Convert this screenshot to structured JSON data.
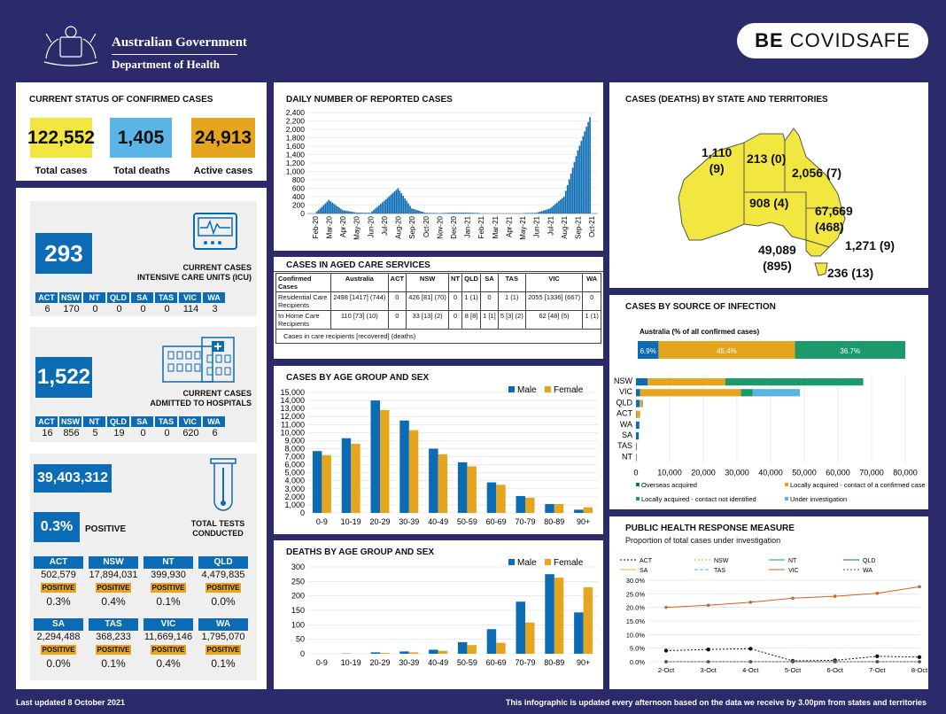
{
  "header": {
    "gov": "Australian Government",
    "dept": "Department of Health",
    "badge_be": "BE ",
    "badge_covid": "COVIDSAFE"
  },
  "status": {
    "title": "CURRENT STATUS OF CONFIRMED CASES",
    "total_cases": "122,552",
    "total_cases_label": "Total cases",
    "total_deaths": "1,405",
    "total_deaths_label": "Total deaths",
    "active": "24,913",
    "active_label": "Active cases"
  },
  "icu": {
    "value": "293",
    "label1": "CURRENT CASES",
    "label2": "INTENSIVE CARE UNITS (ICU)",
    "states": [
      "ACT",
      "NSW",
      "NT",
      "QLD",
      "SA",
      "TAS",
      "VIC",
      "WA"
    ],
    "values": [
      "6",
      "170",
      "0",
      "0",
      "0",
      "0",
      "114",
      "3"
    ]
  },
  "hosp": {
    "value": "1,522",
    "label1": "CURRENT CASES",
    "label2": "ADMITTED TO HOSPITALS",
    "states": [
      "ACT",
      "NSW",
      "NT",
      "QLD",
      "SA",
      "TAS",
      "VIC",
      "WA"
    ],
    "values": [
      "16",
      "856",
      "5",
      "19",
      "0",
      "0",
      "620",
      "6"
    ]
  },
  "tests": {
    "value": "39,403,312",
    "pct": "0.3%",
    "pct_label": "POSITIVE",
    "label1": "TOTAL TESTS",
    "label2": "CONDUCTED",
    "positive_label": "POSITIVE",
    "rows": [
      [
        {
          "s": "ACT",
          "v": "502,579",
          "p": "0.3%"
        },
        {
          "s": "NSW",
          "v": "17,894,031",
          "p": "0.4%"
        },
        {
          "s": "NT",
          "v": "399,930",
          "p": "0.1%"
        },
        {
          "s": "QLD",
          "v": "4,479,835",
          "p": "0.0%"
        }
      ],
      [
        {
          "s": "SA",
          "v": "2,294,488",
          "p": "0.0%"
        },
        {
          "s": "TAS",
          "v": "368,233",
          "p": "0.1%"
        },
        {
          "s": "VIC",
          "v": "11,669,146",
          "p": "0.4%"
        },
        {
          "s": "WA",
          "v": "1,795,070",
          "p": "0.1%"
        }
      ]
    ]
  },
  "daily": {
    "title": "DAILY NUMBER OF REPORTED CASES",
    "yticks": [
      "0",
      "200",
      "400",
      "600",
      "800",
      "1,000",
      "1,200",
      "1,400",
      "1,600",
      "1,800",
      "2,000",
      "2,200",
      "2,400"
    ],
    "xticks": [
      "Feb-20",
      "Mar-20",
      "Apr-20",
      "May-20",
      "Jun-20",
      "Jul-20",
      "Aug-20",
      "Sep-20",
      "Oct-20",
      "Nov-20",
      "Dec-20",
      "Jan-21",
      "Feb-21",
      "Mar-21",
      "Apr-21",
      "May-21",
      "Jun-21",
      "Jul-21",
      "Aug-21",
      "Sep-21",
      "Oct-21"
    ]
  },
  "aged": {
    "title": "CASES IN AGED CARE SERVICES",
    "headers": [
      "Confirmed Cases",
      "Australia",
      "ACT",
      "NSW",
      "NT",
      "QLD",
      "SA",
      "TAS",
      "VIC",
      "WA"
    ],
    "rows": [
      [
        "Residential Care Recipients",
        "2498 [1417] (744)",
        "0",
        "426 [81] (70)",
        "0",
        "1 (1)",
        "0",
        "1 (1)",
        "2055 [1336] (667)",
        "0"
      ],
      [
        "In Home Care Recipients",
        "110 [73] (10)",
        "0",
        "33 [13] (2)",
        "0",
        "8 [8]",
        "1 [1]",
        "5 [3] (2)",
        "62 [48] (5)",
        "1 (1)"
      ]
    ],
    "note": "Cases in care recipients [recovered] (deaths)"
  },
  "map": {
    "title": "CASES (DEATHS) BY STATE AND TERRITORIES",
    "wa": "1,110",
    "wa2": "(9)",
    "nt": "213 (0)",
    "qld": "2,056 (7)",
    "sa": "908 (4)",
    "nsw": "67,669",
    "nsw2": "(468)",
    "vic": "49,089",
    "vic2": "(895)",
    "act": "1,271 (9)",
    "tas": "236 (13)"
  },
  "source": {
    "title": "CASES BY SOURCE OF INFECTION",
    "sub": "Australia (% of all confirmed cases)",
    "p1": "6.9%",
    "p2": "45.4%",
    "p3": "36.7%",
    "states": [
      "NSW",
      "VIC",
      "QLD",
      "ACT",
      "WA",
      "SA",
      "TAS",
      "NT"
    ],
    "xticks": [
      "0",
      "10,000",
      "20,000",
      "30,000",
      "40,000",
      "50,000",
      "60,000",
      "70,000",
      "80,000"
    ],
    "legend": [
      "Overseas acquired",
      "Locally acquired - contact of a confirmed case",
      "Locally acquired - contact not identified",
      "Under investigation"
    ]
  },
  "age_cases": {
    "title": "CASES BY AGE GROUP AND SEX",
    "male": "Male",
    "female": "Female",
    "yticks": [
      "0",
      "1,000",
      "2,000",
      "3,000",
      "4,000",
      "5,000",
      "6,000",
      "7,000",
      "8,000",
      "9,000",
      "10,000",
      "11,000",
      "12,000",
      "13,000",
      "14,000",
      "15,000"
    ]
  },
  "age_deaths": {
    "title": "DEATHS BY AGE GROUP AND SEX",
    "male": "Male",
    "female": "Female",
    "yticks": [
      "0",
      "50",
      "100",
      "150",
      "200",
      "250",
      "300"
    ]
  },
  "phrm": {
    "title": "PUBLIC HEALTH RESPONSE MEASURE",
    "sub": "Proportion of total cases under investigation",
    "yticks": [
      "0.0%",
      "5.0%",
      "10.0%",
      "15.0%",
      "20.0%",
      "25.0%",
      "30.0%"
    ],
    "xticks": [
      "2-Oct",
      "3-Oct",
      "4-Oct",
      "5-Oct",
      "6-Oct",
      "7-Oct",
      "8-Oct"
    ],
    "legend": [
      "ACT",
      "NSW",
      "NT",
      "QLD",
      "SA",
      "TAS",
      "VIC",
      "WA"
    ]
  },
  "footer": {
    "left": "Last updated 8 October 2021",
    "right": "This infographic is updated every afternoon based on the data we receive by 3.00pm from states and territories"
  },
  "colors": {
    "navy": "#2b2a6b",
    "blue": "#0b6cb5",
    "orange": "#e6a51f",
    "yellow": "#f2e641",
    "lightblue": "#5ab4e5",
    "green": "#1c9a6b",
    "map": "#f2e641"
  },
  "chart_data": [
    {
      "type": "bar",
      "title": "DAILY NUMBER OF REPORTED CASES",
      "ylim": [
        0,
        2400
      ],
      "x": [
        "Feb-20",
        "Mar-20",
        "Apr-20",
        "May-20",
        "Jun-20",
        "Jul-20",
        "Aug-20",
        "Sep-20",
        "Oct-20",
        "Nov-20",
        "Dec-20",
        "Jan-21",
        "Feb-21",
        "Mar-21",
        "Apr-21",
        "May-21",
        "Jun-21",
        "Jul-21",
        "Aug-21",
        "Sep-21",
        "Oct-21"
      ],
      "values": [
        5,
        320,
        80,
        20,
        15,
        300,
        600,
        120,
        15,
        10,
        20,
        20,
        10,
        10,
        10,
        10,
        15,
        120,
        400,
        1500,
        2400
      ]
    },
    {
      "type": "bar",
      "title": "CASES BY AGE GROUP AND SEX",
      "categories": [
        "0-9",
        "10-19",
        "20-29",
        "30-39",
        "40-49",
        "50-59",
        "60-69",
        "70-79",
        "80-89",
        "90+"
      ],
      "series": [
        {
          "name": "Male",
          "values": [
            7700,
            9300,
            14000,
            11500,
            8000,
            6300,
            3800,
            2100,
            1100,
            400
          ]
        },
        {
          "name": "Female",
          "values": [
            7200,
            8600,
            12800,
            10300,
            7300,
            5800,
            3500,
            1900,
            1100,
            700
          ]
        }
      ],
      "ylim": [
        0,
        15000
      ]
    },
    {
      "type": "bar",
      "title": "DEATHS BY AGE GROUP AND SEX",
      "categories": [
        "0-9",
        "10-19",
        "20-29",
        "30-39",
        "40-49",
        "50-59",
        "60-69",
        "70-79",
        "80-89",
        "90+"
      ],
      "series": [
        {
          "name": "Male",
          "values": [
            0,
            1,
            5,
            8,
            14,
            40,
            85,
            180,
            275,
            143
          ]
        },
        {
          "name": "Female",
          "values": [
            0,
            0,
            3,
            5,
            10,
            30,
            38,
            108,
            263,
            230
          ]
        }
      ],
      "ylim": [
        0,
        300
      ]
    },
    {
      "type": "bar",
      "title": "CASES BY SOURCE OF INFECTION",
      "categories": [
        "NSW",
        "VIC",
        "QLD",
        "ACT",
        "WA",
        "SA",
        "TAS",
        "NT"
      ],
      "series": [
        {
          "name": "Overseas acquired",
          "values": [
            3500,
            1200,
            1100,
            120,
            1000,
            800,
            200,
            150
          ]
        },
        {
          "name": "Locally acquired - contact of a confirmed case",
          "values": [
            23000,
            30000,
            700,
            1050,
            50,
            90,
            30,
            50
          ]
        },
        {
          "name": "Locally acquired - contact not identified",
          "values": [
            41000,
            3500,
            200,
            50,
            20,
            10,
            5,
            10
          ]
        },
        {
          "name": "Under investigation",
          "values": [
            0,
            14000,
            0,
            0,
            0,
            0,
            0,
            0
          ]
        }
      ],
      "xlim": [
        0,
        80000
      ]
    },
    {
      "type": "line",
      "title": "PUBLIC HEALTH RESPONSE MEASURE",
      "x": [
        "2-Oct",
        "3-Oct",
        "4-Oct",
        "5-Oct",
        "6-Oct",
        "7-Oct",
        "8-Oct"
      ],
      "ylim": [
        0,
        30
      ],
      "series": [
        {
          "name": "ACT",
          "values": [
            4.1,
            4.5,
            4.8,
            0.3,
            0.5,
            2.0,
            1.7
          ]
        },
        {
          "name": "NSW",
          "values": [
            0,
            0,
            0,
            0,
            0,
            0,
            0
          ]
        },
        {
          "name": "NT",
          "values": [
            0,
            0,
            0,
            0,
            0,
            0,
            0
          ]
        },
        {
          "name": "QLD",
          "values": [
            0,
            0,
            0,
            0,
            0,
            0,
            0
          ]
        },
        {
          "name": "SA",
          "values": [
            0,
            0,
            0,
            0,
            0,
            0,
            0
          ]
        },
        {
          "name": "TAS",
          "values": [
            0,
            0,
            0,
            0,
            0,
            0,
            0
          ]
        },
        {
          "name": "VIC",
          "values": [
            20,
            20.8,
            21.9,
            23.4,
            24.1,
            25.2,
            27.6
          ]
        },
        {
          "name": "WA",
          "values": [
            0,
            0,
            0,
            0,
            0,
            0,
            0
          ]
        }
      ]
    }
  ]
}
